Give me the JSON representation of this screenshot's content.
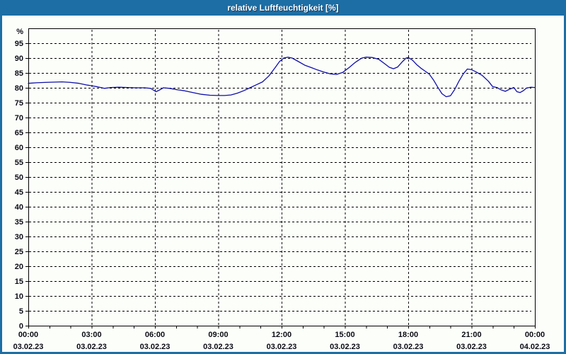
{
  "window": {
    "title": "relative Luftfeuchtigkeit [%]"
  },
  "colors": {
    "titlebar": "#1c6ea4",
    "frame": "#1c6ea4",
    "panel_background": "#fcfefa",
    "plot_border": "#000000",
    "gridline": "#000000",
    "series_line": "#0f0fa8",
    "label_text": "#0b0b14",
    "title_text": "#ffffff"
  },
  "chart_data": {
    "type": "line",
    "title": "relative Luftfeuchtigkeit [%]",
    "xlabel": "",
    "ylabel": "%",
    "ylim": [
      0,
      100
    ],
    "xlim_hours": [
      0,
      24
    ],
    "y_tick_step": 5,
    "y_tick_labels": [
      "0",
      "5",
      "10",
      "15",
      "20",
      "25",
      "30",
      "35",
      "40",
      "45",
      "50",
      "55",
      "60",
      "65",
      "70",
      "75",
      "80",
      "85",
      "90",
      "95"
    ],
    "y_axis_unit_label": "%",
    "grid": "dashed",
    "legend": "none",
    "x_major_tick_every_hours": 3,
    "x_minor_tick_every_hours": 1,
    "x_ticks": [
      {
        "hour": 0,
        "time": "00:00",
        "date": "03.02.23"
      },
      {
        "hour": 3,
        "time": "03:00",
        "date": "03.02.23"
      },
      {
        "hour": 6,
        "time": "06:00",
        "date": "03.02.23"
      },
      {
        "hour": 9,
        "time": "09:00",
        "date": "03.02.23"
      },
      {
        "hour": 12,
        "time": "12:00",
        "date": "03.02.23"
      },
      {
        "hour": 15,
        "time": "15:00",
        "date": "03.02.23"
      },
      {
        "hour": 18,
        "time": "18:00",
        "date": "03.02.23"
      },
      {
        "hour": 21,
        "time": "21:00",
        "date": "03.02.23"
      },
      {
        "hour": 24,
        "time": "00:00",
        "date": "04.02.23"
      }
    ],
    "series": [
      {
        "name": "relative Luftfeuchtigkeit",
        "points": [
          [
            0.0,
            81.5
          ],
          [
            0.4,
            81.7
          ],
          [
            0.8,
            81.8
          ],
          [
            1.2,
            81.9
          ],
          [
            1.6,
            82.0
          ],
          [
            2.0,
            81.8
          ],
          [
            2.4,
            81.5
          ],
          [
            2.8,
            80.9
          ],
          [
            3.0,
            80.7
          ],
          [
            3.3,
            80.3
          ],
          [
            3.6,
            79.8
          ],
          [
            3.9,
            80.1
          ],
          [
            4.3,
            80.2
          ],
          [
            4.7,
            80.1
          ],
          [
            5.1,
            80.0
          ],
          [
            5.5,
            80.0
          ],
          [
            5.8,
            79.8
          ],
          [
            6.05,
            78.7
          ],
          [
            6.2,
            79.2
          ],
          [
            6.4,
            80.0
          ],
          [
            6.7,
            79.8
          ],
          [
            7.0,
            79.4
          ],
          [
            7.4,
            79.0
          ],
          [
            7.8,
            78.4
          ],
          [
            8.2,
            77.8
          ],
          [
            8.6,
            77.5
          ],
          [
            9.0,
            77.4
          ],
          [
            9.3,
            77.4
          ],
          [
            9.6,
            77.6
          ],
          [
            9.9,
            78.2
          ],
          [
            10.2,
            79.0
          ],
          [
            10.5,
            80.0
          ],
          [
            10.8,
            81.0
          ],
          [
            11.1,
            82.0
          ],
          [
            11.4,
            84.0
          ],
          [
            11.7,
            86.8
          ],
          [
            11.9,
            88.8
          ],
          [
            12.1,
            90.0
          ],
          [
            12.3,
            90.3
          ],
          [
            12.5,
            90.0
          ],
          [
            12.8,
            88.8
          ],
          [
            13.1,
            87.6
          ],
          [
            13.4,
            86.8
          ],
          [
            13.7,
            86.0
          ],
          [
            14.0,
            85.3
          ],
          [
            14.3,
            84.7
          ],
          [
            14.6,
            84.5
          ],
          [
            14.9,
            85.2
          ],
          [
            15.2,
            86.8
          ],
          [
            15.5,
            88.6
          ],
          [
            15.8,
            90.0
          ],
          [
            16.0,
            90.3
          ],
          [
            16.3,
            90.2
          ],
          [
            16.6,
            89.6
          ],
          [
            16.9,
            88.0
          ],
          [
            17.1,
            86.9
          ],
          [
            17.3,
            86.4
          ],
          [
            17.5,
            87.0
          ],
          [
            17.7,
            88.6
          ],
          [
            17.9,
            90.0
          ],
          [
            18.0,
            90.2
          ],
          [
            18.2,
            89.3
          ],
          [
            18.4,
            87.8
          ],
          [
            18.6,
            86.6
          ],
          [
            18.8,
            85.6
          ],
          [
            19.0,
            84.6
          ],
          [
            19.2,
            82.6
          ],
          [
            19.4,
            80.2
          ],
          [
            19.6,
            78.0
          ],
          [
            19.8,
            77.0
          ],
          [
            20.0,
            77.3
          ],
          [
            20.2,
            79.4
          ],
          [
            20.4,
            82.2
          ],
          [
            20.6,
            84.6
          ],
          [
            20.8,
            86.3
          ],
          [
            21.0,
            86.1
          ],
          [
            21.2,
            85.4
          ],
          [
            21.5,
            84.2
          ],
          [
            21.8,
            82.2
          ],
          [
            22.0,
            80.4
          ],
          [
            22.2,
            80.1
          ],
          [
            22.4,
            79.3
          ],
          [
            22.6,
            78.8
          ],
          [
            22.8,
            79.5
          ],
          [
            23.0,
            80.1
          ],
          [
            23.15,
            78.7
          ],
          [
            23.3,
            78.4
          ],
          [
            23.45,
            79.0
          ],
          [
            23.6,
            79.9
          ],
          [
            23.8,
            80.2
          ],
          [
            24.0,
            80.1
          ]
        ]
      }
    ]
  }
}
